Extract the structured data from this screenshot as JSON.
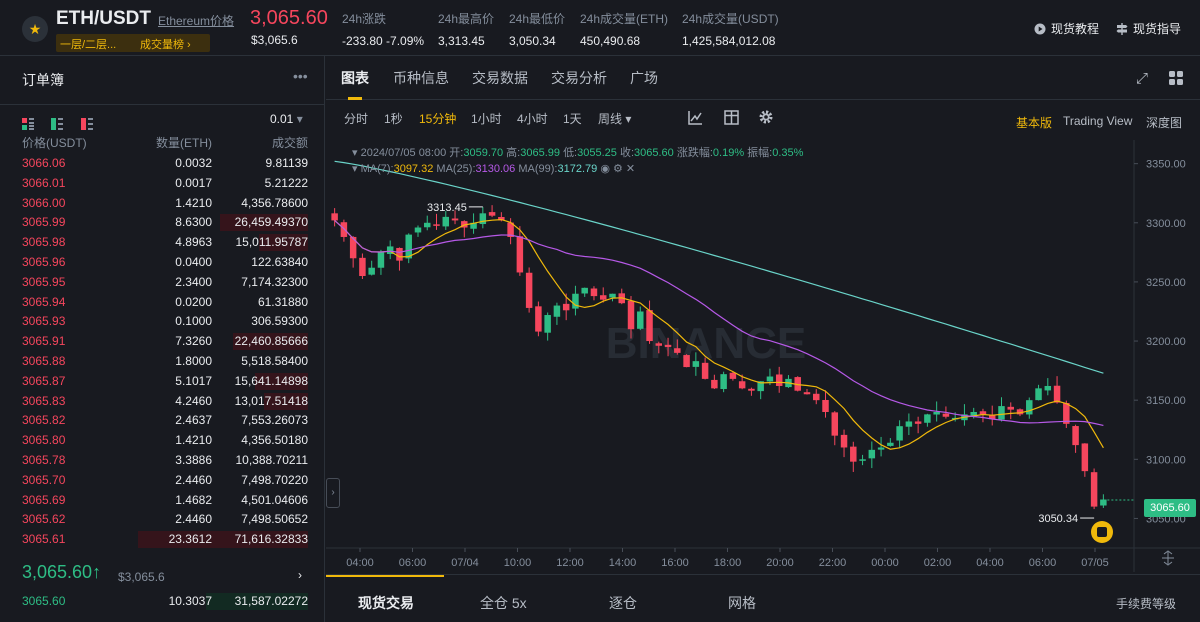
{
  "header": {
    "pair": "ETH/USDT",
    "pair_link": "Ethereum价格",
    "tag1": "一层/二层...",
    "tag2": "成交量榜 ›",
    "last_price": "3,065.60",
    "last_price_sub": "$3,065.6",
    "stats": [
      {
        "label": "24h涨跌",
        "value": "-233.80 -7.09%"
      },
      {
        "label": "24h最高价",
        "value": "3,313.45"
      },
      {
        "label": "24h最低价",
        "value": "3,050.34"
      },
      {
        "label": "24h成交量(ETH)",
        "value": "450,490.68"
      },
      {
        "label": "24h成交量(USDT)",
        "value": "1,425,584,012.08"
      }
    ],
    "tutorial": "现货教程",
    "guide": "现货指导"
  },
  "orderbook": {
    "title": "订单簿",
    "precision": "0.01",
    "headers": {
      "price": "价格(USDT)",
      "amount": "数量(ETH)",
      "total": "成交额"
    },
    "asks": [
      {
        "price": "3066.06",
        "amount": "0.0032",
        "total": "9.81139",
        "depth": 0.0
      },
      {
        "price": "3066.01",
        "amount": "0.0017",
        "total": "5.21222",
        "depth": 0.0
      },
      {
        "price": "3066.00",
        "amount": "1.4210",
        "total": "4,356.78600",
        "depth": 0.0
      },
      {
        "price": "3065.99",
        "amount": "8.6300",
        "total": "26,459.49370",
        "depth": 0.52
      },
      {
        "price": "3065.98",
        "amount": "4.8963",
        "total": "15,011.95787",
        "depth": 0.29
      },
      {
        "price": "3065.96",
        "amount": "0.0400",
        "total": "122.63840",
        "depth": 0.0
      },
      {
        "price": "3065.95",
        "amount": "2.3400",
        "total": "7,174.32300",
        "depth": 0.0
      },
      {
        "price": "3065.94",
        "amount": "0.0200",
        "total": "61.31880",
        "depth": 0.0
      },
      {
        "price": "3065.93",
        "amount": "0.1000",
        "total": "306.59300",
        "depth": 0.0
      },
      {
        "price": "3065.91",
        "amount": "7.3260",
        "total": "22,460.85666",
        "depth": 0.44
      },
      {
        "price": "3065.88",
        "amount": "1.8000",
        "total": "5,518.58400",
        "depth": 0.0
      },
      {
        "price": "3065.87",
        "amount": "5.1017",
        "total": "15,641.14898",
        "depth": 0.31
      },
      {
        "price": "3065.83",
        "amount": "4.2460",
        "total": "13,017.51418",
        "depth": 0.26
      },
      {
        "price": "3065.82",
        "amount": "2.4637",
        "total": "7,553.26073",
        "depth": 0.0
      },
      {
        "price": "3065.80",
        "amount": "1.4210",
        "total": "4,356.50180",
        "depth": 0.0
      },
      {
        "price": "3065.78",
        "amount": "3.3886",
        "total": "10,388.70211",
        "depth": 0.0
      },
      {
        "price": "3065.70",
        "amount": "2.4460",
        "total": "7,498.70220",
        "depth": 0.0
      },
      {
        "price": "3065.69",
        "amount": "1.4682",
        "total": "4,501.04606",
        "depth": 0.0
      },
      {
        "price": "3065.62",
        "amount": "2.4460",
        "total": "7,498.50652",
        "depth": 0.0
      },
      {
        "price": "3065.61",
        "amount": "23.3612",
        "total": "71,616.32833",
        "depth": 1.0
      }
    ],
    "mid_price": "3,065.60",
    "mid_arrow": "↑",
    "mid_sub": "$3,065.6",
    "bids": [
      {
        "price": "3065.60",
        "amount": "10.3037",
        "total": "31,587.02272",
        "depth": 0.6
      }
    ]
  },
  "tabs": [
    "图表",
    "币种信息",
    "交易数据",
    "交易分析",
    "广场"
  ],
  "timeframes": [
    "分时",
    "1秒",
    "15分钟",
    "1小时",
    "4小时",
    "1天",
    "周线 ▾"
  ],
  "active_timeframe": "15分钟",
  "views": [
    "基本版",
    "Trading View",
    "深度图"
  ],
  "active_view": "基本版",
  "candle_info": {
    "date": "2024/07/05 08:00",
    "open_label": "开:",
    "open": "3059.70",
    "high_label": "高:",
    "high": "3065.99",
    "low_label": "低:",
    "low": "3055.25",
    "close_label": "收:",
    "close": "3065.60",
    "change_label": "涨跌幅:",
    "change": "0.19%",
    "amp_label": "振幅:",
    "amp": "0.35%"
  },
  "ma_info": {
    "ma7_label": "MA(7):",
    "ma7": "3097.32",
    "ma25_label": "MA(25):",
    "ma25": "3130.06",
    "ma99_label": "MA(99):",
    "ma99": "3172.79"
  },
  "chart_data": {
    "type": "line",
    "y_ticks": [
      3350,
      3300,
      3250,
      3200,
      3150,
      3100,
      3050
    ],
    "y_tick_labels": [
      "3350.00",
      "3300.00",
      "3250.00",
      "3200.00",
      "3150.00",
      "3100.00",
      "3050.00"
    ],
    "ylim": [
      3025,
      3370
    ],
    "x_tick_labels": [
      "04:00",
      "06:00",
      "07/04",
      "10:00",
      "12:00",
      "14:00",
      "16:00",
      "18:00",
      "20:00",
      "22:00",
      "00:00",
      "02:00",
      "04:00",
      "06:00",
      "07/05"
    ],
    "closes": [
      3302,
      3288,
      3270,
      3255,
      3262,
      3275,
      3280,
      3268,
      3290,
      3296,
      3300,
      3298,
      3305,
      3302,
      3296,
      3300,
      3308,
      3306,
      3302,
      3288,
      3258,
      3228,
      3208,
      3222,
      3230,
      3226,
      3240,
      3245,
      3238,
      3235,
      3240,
      3232,
      3210,
      3225,
      3200,
      3196,
      3195,
      3190,
      3178,
      3183,
      3168,
      3160,
      3172,
      3168,
      3160,
      3158,
      3166,
      3170,
      3162,
      3168,
      3158,
      3155,
      3150,
      3140,
      3120,
      3110,
      3098,
      3100,
      3108,
      3110,
      3114,
      3128,
      3132,
      3130,
      3138,
      3140,
      3136,
      3135,
      3138,
      3140,
      3138,
      3134,
      3145,
      3142,
      3138,
      3150,
      3160,
      3162,
      3148,
      3130,
      3112,
      3090,
      3060,
      3066
    ],
    "ma7_end": 3097.32,
    "ma25_end": 3130.06,
    "ma99_end": 3172.79,
    "high_label": "3313.45",
    "low_label": "3050.34",
    "current_price": "3065.60",
    "colors": {
      "up": "#2ebd85",
      "down": "#f6465d",
      "ma7": "#f0b90b",
      "ma25": "#b659e7",
      "ma99": "#6ad4c9"
    }
  },
  "watermark": "BINANCE",
  "bottom_tabs": [
    "现货交易",
    "全仓 5x",
    "逐仓",
    "网格"
  ],
  "fee": "手续费等级"
}
